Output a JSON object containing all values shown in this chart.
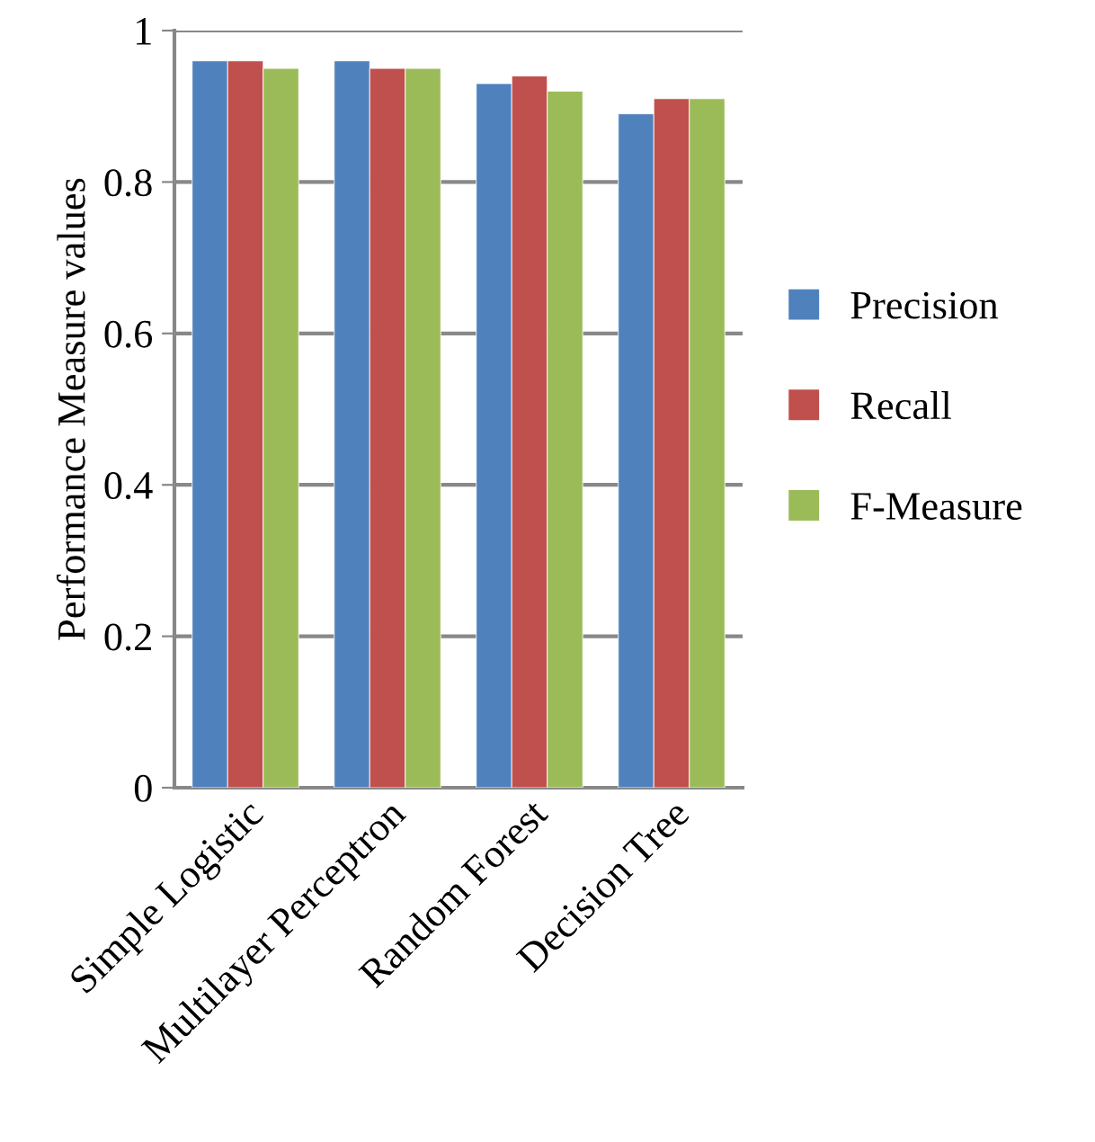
{
  "chart_data": {
    "type": "bar",
    "ylabel": "Performance Measure values",
    "categories": [
      "Simple Logistic",
      "Multilayer Perceptron",
      "Random Forest",
      "Decision Tree"
    ],
    "series": [
      {
        "name": "Precision",
        "color": "#4f81bd",
        "values": [
          0.96,
          0.96,
          0.93,
          0.89
        ]
      },
      {
        "name": "Recall",
        "color": "#c0504d",
        "values": [
          0.96,
          0.95,
          0.94,
          0.91
        ]
      },
      {
        "name": "F-Measure",
        "color": "#9bbb59",
        "values": [
          0.95,
          0.95,
          0.92,
          0.91
        ]
      }
    ],
    "ylim": [
      0,
      1
    ],
    "yticks": [
      0,
      0.2,
      0.4,
      0.6,
      0.8,
      1
    ],
    "grid": "y",
    "legend": "right"
  }
}
